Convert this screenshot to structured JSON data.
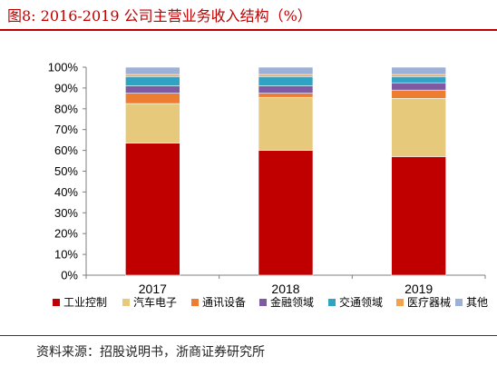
{
  "header": {
    "title": "图8:  2016-2019 公司主营业务收入结构（%）"
  },
  "footer": {
    "source": "资料来源：招股说明书，浙商证券研究所"
  },
  "chart_data": {
    "type": "bar",
    "stacked": true,
    "categories": [
      "2017",
      "2018",
      "2019"
    ],
    "ylim": [
      0,
      100
    ],
    "yticks": [
      "0%",
      "10%",
      "20%",
      "30%",
      "40%",
      "50%",
      "60%",
      "70%",
      "80%",
      "90%",
      "100%"
    ],
    "legend": "bottom",
    "series": [
      {
        "name": "工业控制",
        "color": "#c00000",
        "values": [
          63.5,
          60,
          57
        ]
      },
      {
        "name": "汽车电子",
        "color": "#e6c97a",
        "values": [
          19,
          25.5,
          28
        ]
      },
      {
        "name": "通讯设备",
        "color": "#ed7d31",
        "values": [
          5,
          2,
          4
        ]
      },
      {
        "name": "金融领域",
        "color": "#7f5aa2",
        "values": [
          3.5,
          3.5,
          3.5
        ]
      },
      {
        "name": "交通领域",
        "color": "#2fa3c4",
        "values": [
          4.5,
          4.5,
          3
        ]
      },
      {
        "name": "医疗器械",
        "color": "#f3a24f",
        "values": [
          1,
          1,
          1
        ]
      },
      {
        "name": "其他",
        "color": "#9db1d8",
        "values": [
          3.5,
          3.5,
          3.5
        ]
      }
    ]
  }
}
